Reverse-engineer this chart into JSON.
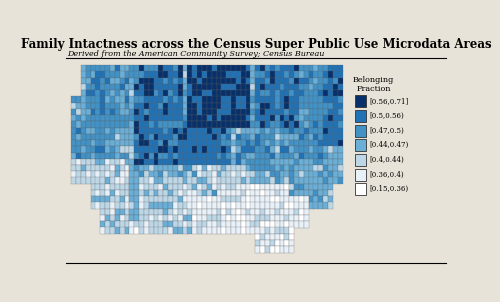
{
  "title": "Family Intactness across the Census Super Public Use Microdata Areas",
  "subtitle": "Derived from the American Community Survey; Census Bureau",
  "legend_title_line1": "Belonging",
  "legend_title_line2": "Fraction",
  "legend_labels": [
    "[0.56,0.71]",
    "[0.5,0.56)",
    "[0.47,0.5)",
    "[0.44,0.47)",
    "[0.4,0.44)",
    "[0.36,0.4)",
    "[0.15,0.36)"
  ],
  "legend_colors": [
    "#08306b",
    "#2171b5",
    "#4292c6",
    "#6baed6",
    "#bdd7e7",
    "#e8f0f8",
    "#ffffff"
  ],
  "background_color": "#e8e3d8",
  "border_color": "#555555",
  "title_fontsize": 8.5,
  "subtitle_fontsize": 5.8,
  "figsize": [
    5.0,
    3.02
  ],
  "dpi": 100
}
